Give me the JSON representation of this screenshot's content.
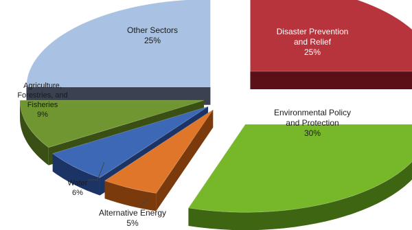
{
  "chart_data": {
    "type": "pie",
    "style": "exploded-3d",
    "title": "",
    "slices": [
      {
        "label": [
          "Disaster Prevention",
          "and Relief"
        ],
        "value": 25,
        "value_label": "25%",
        "color": "#b8343c",
        "side_color": "#5a1016"
      },
      {
        "label": [
          "Environmental Policy",
          "and Protection"
        ],
        "value": 30,
        "value_label": "30%",
        "color": "#77b82a",
        "side_color": "#3d6512"
      },
      {
        "label": [
          "Alternative Energy"
        ],
        "value": 5,
        "value_label": "5%",
        "color": "#e0762a",
        "side_color": "#7a3a0c"
      },
      {
        "label": [
          "Water"
        ],
        "value": 6,
        "value_label": "6%",
        "color": "#3c68b5",
        "side_color": "#1c3366"
      },
      {
        "label": [
          "Agriculture,",
          "Forestries, and",
          "Fisheries"
        ],
        "value": 9,
        "value_label": "9%",
        "color": "#6f9630",
        "side_color": "#394f14"
      },
      {
        "label": [
          "Other Sectors"
        ],
        "value": 25,
        "value_label": "25%",
        "color": "#a9c2e3",
        "side_color": "#3a4150"
      }
    ]
  }
}
